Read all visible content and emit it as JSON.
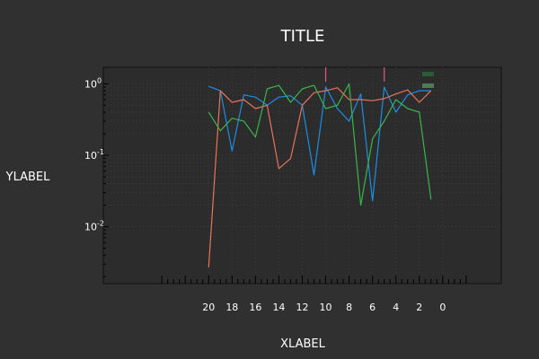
{
  "chart_data": {
    "type": "line",
    "title": "TITLE",
    "xlabel": "XLABEL",
    "ylabel": "YLABEL",
    "x_reversed": true,
    "xlim": [
      29,
      -5
    ],
    "ylim": [
      0.0016,
      1.7
    ],
    "y_scale": "log",
    "grid": true,
    "legend": "top-right",
    "x_ticks": [
      20,
      18,
      16,
      14,
      12,
      10,
      8,
      6,
      4,
      2,
      0
    ],
    "y_ticks": [
      {
        "value": 1,
        "base": "10",
        "exp": "0"
      },
      {
        "value": 0.1,
        "base": "10",
        "exp": "-1"
      },
      {
        "value": 0.01,
        "base": "10",
        "exp": "-2"
      }
    ],
    "x": [
      20,
      19,
      18,
      17,
      16,
      15,
      14,
      13,
      12,
      11,
      10,
      9,
      8,
      7,
      6,
      5,
      4,
      3,
      2,
      1
    ],
    "series": [
      {
        "color": "#1a8fe6",
        "values": [
          0.92,
          0.8,
          0.115,
          0.7,
          0.65,
          0.5,
          0.65,
          0.68,
          0.5,
          0.053,
          0.9,
          0.45,
          0.3,
          0.72,
          0.023,
          0.9,
          0.4,
          0.7,
          0.8,
          0.8
        ]
      },
      {
        "color": "#e8735a",
        "values": [
          0.0027,
          0.8,
          0.55,
          0.6,
          0.45,
          0.5,
          0.065,
          0.09,
          0.5,
          0.75,
          0.8,
          0.88,
          0.6,
          0.6,
          0.58,
          0.62,
          0.72,
          0.82,
          0.55,
          0.8
        ]
      },
      {
        "color": "#3bb54a",
        "values": [
          0.4,
          0.22,
          0.33,
          0.3,
          0.18,
          0.85,
          0.95,
          0.55,
          0.85,
          0.95,
          0.45,
          0.5,
          1.0,
          0.02,
          0.17,
          0.3,
          0.6,
          0.45,
          0.4,
          0.024
        ]
      }
    ],
    "markers": [
      {
        "x": 10,
        "color": "#e0588b"
      },
      {
        "x": 5,
        "color": "#e0588b"
      }
    ],
    "legend_entries": [
      {
        "color": "#2e5a34"
      },
      {
        "color": "#4e7a54"
      }
    ]
  }
}
